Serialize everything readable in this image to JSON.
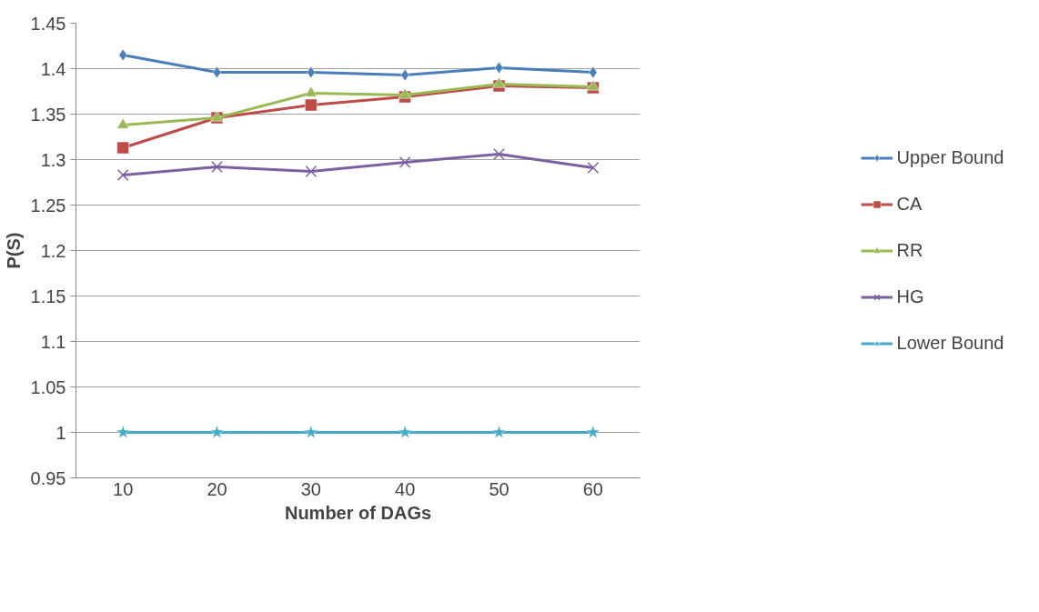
{
  "chart_data": {
    "type": "line",
    "xlabel": "Number of DAGs",
    "ylabel": "P(S)",
    "categories": [
      "10",
      "20",
      "30",
      "40",
      "50",
      "60"
    ],
    "ylim": [
      0.95,
      1.45
    ],
    "yticks": [
      0.95,
      1,
      1.05,
      1.1,
      1.15,
      1.2,
      1.25,
      1.3,
      1.35,
      1.4,
      1.45
    ],
    "grid": "y",
    "legend": "right",
    "line_style": "solid",
    "series": [
      {
        "name": "Upper Bound",
        "color": "#4a7ebb",
        "marker": "diamond",
        "values": [
          1.415,
          1.396,
          1.396,
          1.393,
          1.401,
          1.396
        ]
      },
      {
        "name": "CA",
        "color": "#be4b48",
        "marker": "square",
        "values": [
          1.313,
          1.346,
          1.36,
          1.369,
          1.381,
          1.379
        ]
      },
      {
        "name": "RR",
        "color": "#98b954",
        "marker": "triangle",
        "values": [
          1.338,
          1.346,
          1.373,
          1.371,
          1.383,
          1.38
        ]
      },
      {
        "name": "HG",
        "color": "#7d60a0",
        "marker": "cross",
        "values": [
          1.283,
          1.292,
          1.287,
          1.297,
          1.306,
          1.291
        ]
      },
      {
        "name": "Lower Bound",
        "color": "#46aac5",
        "marker": "star",
        "values": [
          1,
          1,
          1,
          1,
          1,
          1
        ]
      }
    ]
  }
}
